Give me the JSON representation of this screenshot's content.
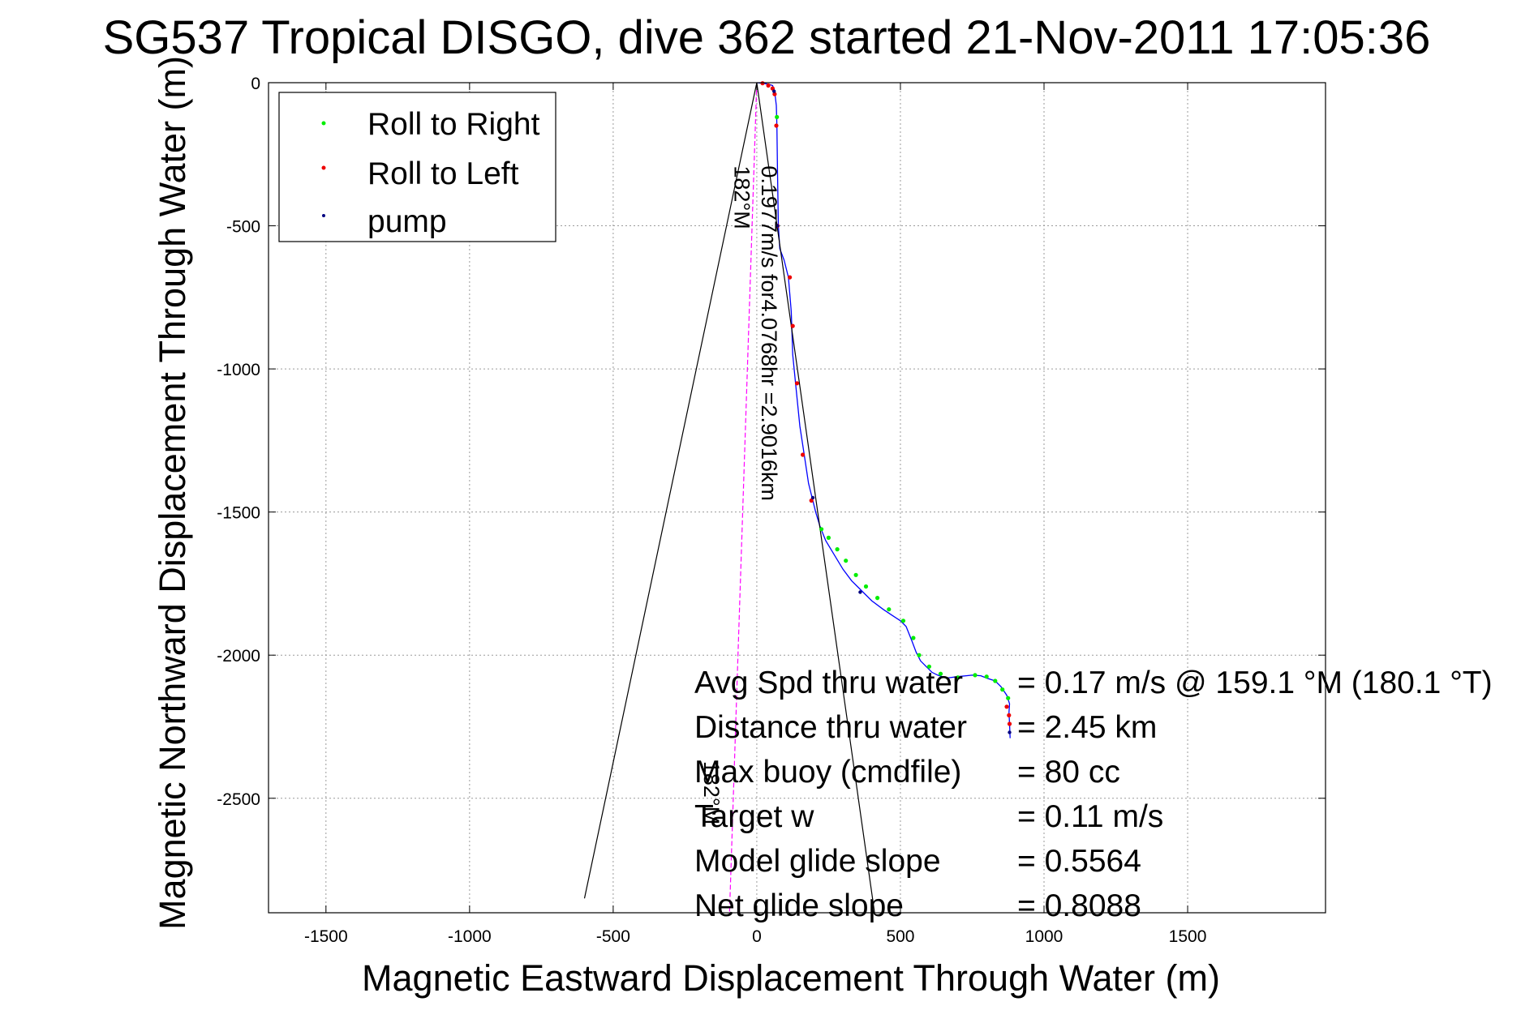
{
  "chart_data": {
    "type": "line",
    "title": "SG537 Tropical DISGO, dive 362 started 21-Nov-2011 17:05:36",
    "xlabel": "Magnetic Eastward Displacement Through Water (m)",
    "ylabel": "Magnetic Northward Displacement Through Water (m)",
    "xlim": [
      -1700,
      1980
    ],
    "ylim": [
      -2900,
      0
    ],
    "xticks": [
      -1500,
      -1000,
      -500,
      0,
      500,
      1000,
      1500
    ],
    "yticks": [
      0,
      -500,
      -1000,
      -1500,
      -2000,
      -2500
    ],
    "xtick_labels": [
      "-1500",
      "-1000",
      "-500",
      "0",
      "500",
      "1000",
      "1500"
    ],
    "ytick_labels": [
      "0",
      "-500",
      "-1000",
      "-1500",
      "-2000",
      "-2500"
    ],
    "grid": true,
    "legend_position": "top-left",
    "legend": [
      {
        "label": "Roll to Right",
        "color": "#00ee00"
      },
      {
        "label": "Roll to Left",
        "color": "#ee0000"
      },
      {
        "label": "pump",
        "color": "#000080"
      }
    ],
    "series": [
      {
        "kind": "track",
        "color": "#0000ff",
        "x": [
          0,
          20,
          40,
          55,
          62,
          68,
          70,
          72,
          75,
          80,
          95,
          110,
          120,
          125,
          135,
          150,
          165,
          180,
          195,
          205,
          220,
          240,
          270,
          300,
          330,
          360,
          400,
          440,
          470,
          500,
          520,
          540,
          555,
          570,
          590,
          610,
          630,
          660,
          700,
          750,
          780,
          800,
          830,
          850,
          870,
          880,
          878,
          880,
          882
        ],
        "y": [
          0,
          -2,
          -5,
          -10,
          -30,
          -80,
          -150,
          -300,
          -500,
          -580,
          -620,
          -680,
          -800,
          -950,
          -1050,
          -1200,
          -1300,
          -1400,
          -1460,
          -1500,
          -1550,
          -1600,
          -1650,
          -1700,
          -1740,
          -1770,
          -1810,
          -1840,
          -1860,
          -1880,
          -1900,
          -1950,
          -1990,
          -2020,
          -2040,
          -2060,
          -2070,
          -2080,
          -2075,
          -2070,
          -2072,
          -2080,
          -2090,
          -2110,
          -2140,
          -2170,
          -2200,
          -2240,
          -2290
        ]
      },
      {
        "kind": "roll_right",
        "color": "#00ee00",
        "x": [
          70,
          225,
          250,
          280,
          310,
          345,
          380,
          420,
          460,
          510,
          545,
          565,
          600,
          640,
          700,
          760,
          800,
          830,
          855,
          875
        ],
        "y": [
          -120,
          -1560,
          -1590,
          -1630,
          -1670,
          -1720,
          -1760,
          -1800,
          -1840,
          -1880,
          -1940,
          -2000,
          -2040,
          -2065,
          -2078,
          -2070,
          -2075,
          -2090,
          -2120,
          -2150
        ]
      },
      {
        "kind": "roll_left",
        "color": "#ee0000",
        "x": [
          20,
          40,
          55,
          62,
          68,
          72,
          115,
          125,
          140,
          160,
          190,
          870,
          878,
          880
        ],
        "y": [
          -2,
          -10,
          -20,
          -40,
          -150,
          -500,
          -680,
          -850,
          -1050,
          -1300,
          -1460,
          -2180,
          -2210,
          -2240
        ]
      },
      {
        "kind": "pump",
        "color": "#000080",
        "x": [
          60,
          72,
          195,
          360,
          880
        ],
        "y": [
          -30,
          -500,
          -1450,
          -1780,
          -2270
        ]
      },
      {
        "kind": "current_line",
        "color": "#ff00ff",
        "x": [
          0,
          -95
        ],
        "y": [
          0,
          -2900
        ]
      },
      {
        "kind": "cone",
        "color": "#000000",
        "x": [
          -600,
          0,
          410
        ],
        "y": [
          -2850,
          0,
          -2900
        ]
      }
    ],
    "annotations": [
      {
        "text": "0.1977m/s for4.0768hr =2.9016km",
        "x": 0,
        "y": -290,
        "rotation": 90
      },
      {
        "text": "182°M",
        "x": -95,
        "y": -290,
        "rotation": 90
      },
      {
        "text": "182°M",
        "x": -200,
        "y": -2370,
        "rotation": 90
      }
    ],
    "stats": [
      {
        "label": "Avg Spd thru water",
        "value": "=  0.17 m/s @ 159.1 °M (180.1 °T)"
      },
      {
        "label": "Distance thru water",
        "value": "=  2.45 km"
      },
      {
        "label": "Max buoy (cmdfile)",
        "value": "= 80 cc"
      },
      {
        "label": "Target w",
        "value": "= 0.11 m/s"
      },
      {
        "label": "Model glide slope",
        "value": "= 0.5564"
      },
      {
        "label": "Net glide slope",
        "value": "= 0.8088"
      }
    ]
  }
}
